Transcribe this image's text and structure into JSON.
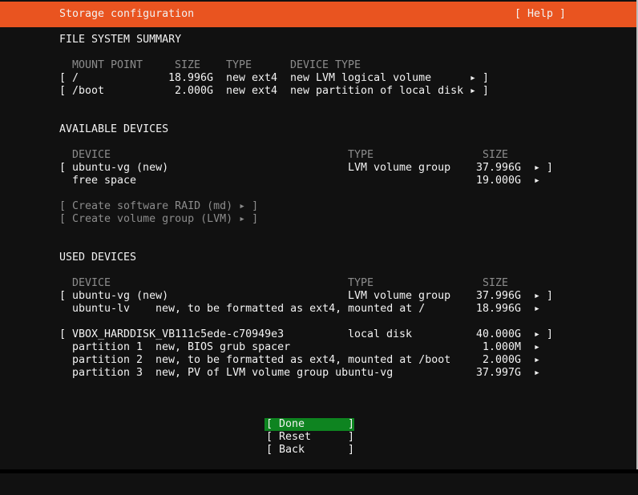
{
  "header": {
    "title": "Storage configuration",
    "help_label": "[ Help ]"
  },
  "fs_summary": {
    "title": "FILE SYSTEM SUMMARY",
    "columns": [
      "MOUNT POINT",
      "SIZE",
      "TYPE",
      "DEVICE TYPE"
    ],
    "rows": [
      {
        "mount": "/",
        "size": "18.996G",
        "type": "new ext4",
        "device_type": "new LVM logical volume"
      },
      {
        "mount": "/boot",
        "size": "2.000G",
        "type": "new ext4",
        "device_type": "new partition of local disk"
      }
    ]
  },
  "available": {
    "title": "AVAILABLE DEVICES",
    "columns": [
      "DEVICE",
      "TYPE",
      "SIZE"
    ],
    "devices": [
      {
        "name": "ubuntu-vg (new)",
        "type": "LVM volume group",
        "size": "37.996G"
      }
    ],
    "free_space": {
      "label": "free space",
      "size": "19.000G"
    },
    "actions": [
      "[ Create software RAID (md) ▸ ]",
      "[ Create volume group (LVM) ▸ ]"
    ]
  },
  "used": {
    "title": "USED DEVICES",
    "columns": [
      "DEVICE",
      "TYPE",
      "SIZE"
    ],
    "vg": {
      "name": "ubuntu-vg (new)",
      "type": "LVM volume group",
      "size": "37.996G",
      "children": [
        {
          "name": "ubuntu-lv",
          "desc": "new, to be formatted as ext4, mounted at /",
          "size": "18.996G"
        }
      ]
    },
    "disk": {
      "name": "VBOX_HARDDISK_VB111c5ede-c70949e3",
      "type": "local disk",
      "size": "40.000G",
      "partitions": [
        {
          "name": "partition 1",
          "desc": "new, BIOS grub spacer",
          "size": "1.000M"
        },
        {
          "name": "partition 2",
          "desc": "new, to be formatted as ext4, mounted at /boot",
          "size": "2.000G"
        },
        {
          "name": "partition 3",
          "desc": "new, PV of LVM volume group ubuntu-vg",
          "size": "37.997G"
        }
      ]
    }
  },
  "buttons": {
    "done": "Done",
    "reset": "Reset",
    "back": "Back"
  },
  "glyphs": {
    "open": "[",
    "close": "]",
    "arrow": "▸"
  },
  "colors": {
    "header": "#e95420",
    "selected": "#0e8420",
    "background": "#111111"
  }
}
